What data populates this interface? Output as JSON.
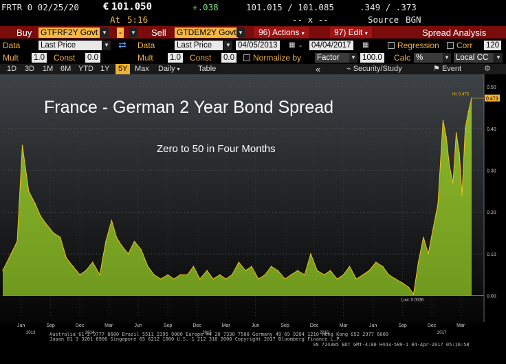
{
  "quote": {
    "ticker": "FRTR 0 02/25/20",
    "currency_symbol": "€",
    "last": "101.050",
    "change": "+.038",
    "bid_ask": "101.015 / 101.085",
    "yield": ".349 / .373",
    "at_label": "At",
    "time": "5:16",
    "spacer": "-- x --",
    "source_label": "Source",
    "source": "BGN"
  },
  "toolbar": {
    "buy_label": "Buy",
    "buy_security": "GTFRF2Y Govt",
    "minus": "-",
    "sell_label": "Sell",
    "sell_security": "GTDEM2Y Govt",
    "actions": "96) Actions",
    "edit": "97) Edit",
    "spread_analysis": "Spread Analysis"
  },
  "params1": {
    "data_label": "Data",
    "data_value": "Last Price",
    "data2_label": "Data",
    "data2_value": "Last Price",
    "start_date": "04/05/2013",
    "dash": "-",
    "end_date": "04/04/2017",
    "regression_label": "Regression",
    "corr_label": "Corr",
    "corr_value": "120"
  },
  "params2": {
    "mult_label": "Mult",
    "mult_value": "1.0",
    "const_label": "Const",
    "const_value": "0.0",
    "mult2_label": "Mult",
    "mult2_value": "1.0",
    "const2_label": "Const",
    "const2_value": "0.0",
    "normalize_label": "Normalize by",
    "factor_label": "Factor",
    "factor_value": "100.0",
    "calc_label": "Calc",
    "calc_value": "%",
    "currency_value": "Local CC"
  },
  "range_tabs": [
    "1D",
    "3D",
    "1M",
    "6M",
    "YTD",
    "1Y",
    "5Y",
    "Max"
  ],
  "active_range": "5Y",
  "period": "Daily",
  "table_label": "Table",
  "nav": {
    "collapse": "«",
    "security_study": "Security/Study",
    "event": "Event"
  },
  "chart_data": {
    "type": "area",
    "title": "France - German 2 Year Bond Spread",
    "subtitle": "Zero to 50 in Four Months",
    "ylim": [
      -0.05,
      0.52
    ],
    "y_ticks": [
      "0.50",
      "0.40",
      "0.30",
      "0.20",
      "0.10",
      "0.00"
    ],
    "y_tick_values": [
      0.5,
      0.4,
      0.3,
      0.2,
      0.1,
      0.0
    ],
    "x_labels": [
      "Jun",
      "Sep",
      "Dec",
      "Mar",
      "Jun",
      "Sep",
      "Dec",
      "Mar",
      "Jun",
      "Sep",
      "Dec",
      "Mar",
      "Jun",
      "Sep",
      "Dec",
      "Mar"
    ],
    "x_label_dates": [
      "2013-06-01",
      "2013-09-01",
      "2013-12-01",
      "2014-03-01",
      "2014-06-01",
      "2014-09-01",
      "2014-12-01",
      "2015-03-01",
      "2015-06-01",
      "2015-09-01",
      "2015-12-01",
      "2016-03-01",
      "2016-06-01",
      "2016-09-01",
      "2016-12-01",
      "2017-03-01"
    ],
    "year_labels": [
      "2013",
      "2014",
      "2015",
      "2016",
      "2017"
    ],
    "year_label_dates": [
      "2013-07-01",
      "2014-01-01",
      "2015-01-01",
      "2016-01-01",
      "2017-01-01"
    ],
    "high_label": "Hi: 0.473",
    "low_label": "Low: 0.0036",
    "last_value_label": "0.473",
    "x": [
      "2013-04-05",
      "2013-05-01",
      "2013-05-20",
      "2013-06-05",
      "2013-06-25",
      "2013-07-15",
      "2013-08-01",
      "2013-08-20",
      "2013-09-10",
      "2013-10-01",
      "2013-10-20",
      "2013-11-10",
      "2013-12-01",
      "2013-12-20",
      "2014-01-10",
      "2014-02-01",
      "2014-02-20",
      "2014-03-10",
      "2014-03-25",
      "2014-04-10",
      "2014-05-01",
      "2014-05-20",
      "2014-06-10",
      "2014-07-01",
      "2014-07-20",
      "2014-08-10",
      "2014-09-01",
      "2014-09-20",
      "2014-10-10",
      "2014-11-01",
      "2014-11-20",
      "2014-12-10",
      "2015-01-01",
      "2015-01-20",
      "2015-02-10",
      "2015-03-01",
      "2015-03-20",
      "2015-04-10",
      "2015-05-01",
      "2015-05-20",
      "2015-06-10",
      "2015-07-01",
      "2015-07-20",
      "2015-08-10",
      "2015-09-01",
      "2015-09-20",
      "2015-10-10",
      "2015-11-01",
      "2015-11-20",
      "2015-12-10",
      "2016-01-01",
      "2016-01-20",
      "2016-02-10",
      "2016-03-01",
      "2016-03-20",
      "2016-04-10",
      "2016-05-01",
      "2016-05-20",
      "2016-06-10",
      "2016-07-01",
      "2016-07-20",
      "2016-08-10",
      "2016-09-01",
      "2016-09-20",
      "2016-10-05",
      "2016-10-20",
      "2016-11-05",
      "2016-11-20",
      "2016-12-05",
      "2016-12-20",
      "2017-01-05",
      "2017-01-15",
      "2017-01-25",
      "2017-02-05",
      "2017-02-15",
      "2017-02-25",
      "2017-03-05",
      "2017-03-15",
      "2017-03-25",
      "2017-04-04"
    ],
    "values": [
      0.06,
      0.1,
      0.13,
      0.36,
      0.25,
      0.22,
      0.19,
      0.17,
      0.15,
      0.14,
      0.09,
      0.07,
      0.05,
      0.06,
      0.08,
      0.05,
      0.13,
      0.18,
      0.14,
      0.12,
      0.1,
      0.13,
      0.11,
      0.07,
      0.05,
      0.04,
      0.05,
      0.04,
      0.05,
      0.05,
      0.07,
      0.04,
      0.06,
      0.04,
      0.05,
      0.04,
      0.05,
      0.08,
      0.06,
      0.07,
      0.04,
      0.05,
      0.07,
      0.06,
      0.04,
      0.05,
      0.06,
      0.05,
      0.1,
      0.06,
      0.05,
      0.06,
      0.04,
      0.05,
      0.07,
      0.04,
      0.05,
      0.06,
      0.08,
      0.07,
      0.05,
      0.04,
      0.03,
      0.02,
      0.0036,
      0.08,
      0.14,
      0.1,
      0.16,
      0.22,
      0.42,
      0.38,
      0.31,
      0.27,
      0.39,
      0.34,
      0.24,
      0.4,
      0.44,
      0.473
    ]
  },
  "footer": {
    "line1": "Australia 61 2 9777 8600 Brazil 5511 2395 9000 Europe 44 20 7330 7500 Germany 49 69 9204 1210 Hong Kong 852 2977 6000",
    "line2": "Japan 81 3 3201 8900        Singapore 65 6212 1000     U.S. 1 212 318 2000          Copyright 2017 Bloomberg Finance L.P.",
    "line3": "SN 724385 EDT  GMT-4:00 H443-589-1 04-Apr-2017 05:16:58"
  },
  "colors": {
    "area_fill": "#6f9a1e",
    "line": "#f0c020",
    "header_bar": "#7a0c0c",
    "accent": "#f5b941"
  }
}
